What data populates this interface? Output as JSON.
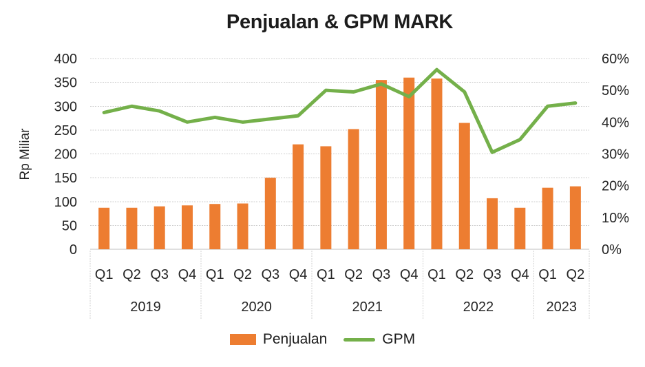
{
  "title": "Penjualan & GPM MARK",
  "colors": {
    "bar": "#ED7D31",
    "line": "#74B04A",
    "grid": "#CFCFCF",
    "axis_line": "#BFBFBF",
    "text": "#262626",
    "title_text": "#1c1c1c"
  },
  "chart_data": {
    "type": "combo_bar_line",
    "title": "Penjualan & GPM MARK",
    "x_groups": [
      {
        "year": "2019",
        "quarters": [
          "Q1",
          "Q2",
          "Q3",
          "Q4"
        ]
      },
      {
        "year": "2020",
        "quarters": [
          "Q1",
          "Q2",
          "Q3",
          "Q4"
        ]
      },
      {
        "year": "2021",
        "quarters": [
          "Q1",
          "Q2",
          "Q3",
          "Q4"
        ]
      },
      {
        "year": "2022",
        "quarters": [
          "Q1",
          "Q2",
          "Q3",
          "Q4"
        ]
      },
      {
        "year": "2023",
        "quarters": [
          "Q1",
          "Q2"
        ]
      }
    ],
    "series": [
      {
        "name": "Penjualan",
        "type": "bar",
        "axis": "left",
        "color": "#ED7D31",
        "values": [
          87,
          87,
          90,
          92,
          95,
          96,
          150,
          220,
          216,
          252,
          355,
          360,
          358,
          265,
          107,
          87,
          129,
          132
        ]
      },
      {
        "name": "GPM",
        "type": "line",
        "axis": "right",
        "color": "#74B04A",
        "values_pct": [
          43,
          45,
          43.5,
          40,
          41.5,
          40,
          41,
          42,
          50,
          49.5,
          52,
          48,
          56.5,
          49.5,
          30.5,
          34.5,
          45,
          46
        ]
      }
    ],
    "left_axis": {
      "label": "Rp Miliar",
      "min": 0,
      "max": 400,
      "step": 50,
      "tick_labels": [
        "400",
        "350",
        "300",
        "250",
        "200",
        "150",
        "100",
        "50",
        "0"
      ]
    },
    "right_axis": {
      "min": 0,
      "max": 60,
      "step": 10,
      "unit": "%",
      "tick_labels": [
        "60%",
        "50%",
        "40%",
        "30%",
        "20%",
        "10%",
        "0%"
      ]
    },
    "grid": true,
    "legend_position": "bottom"
  },
  "legend": {
    "items": [
      "Penjualan",
      "GPM"
    ]
  }
}
